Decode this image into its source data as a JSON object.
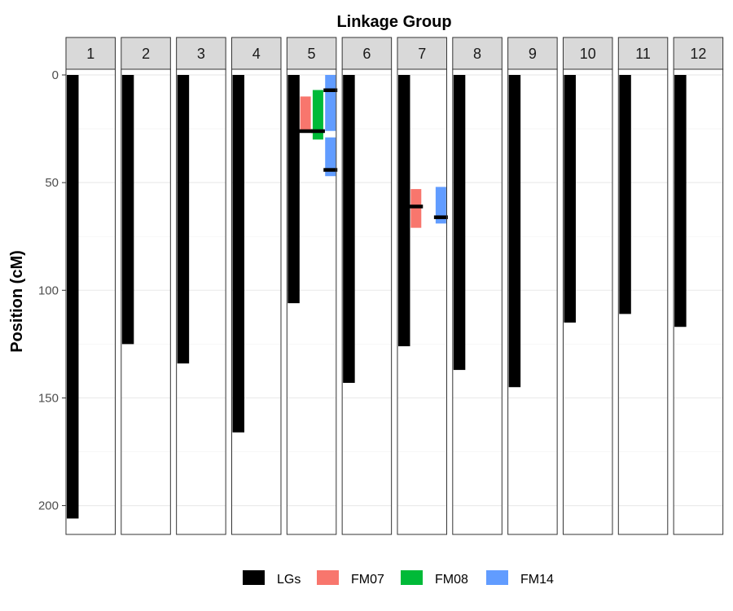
{
  "chart_data": {
    "type": "bar",
    "title": "Linkage Group",
    "xlabel": "",
    "ylabel": "Position (cM)",
    "ylim": [
      0,
      213
    ],
    "y_reversed": true,
    "y_ticks": [
      0,
      50,
      100,
      150,
      200
    ],
    "grid": true,
    "legend_position": "bottom",
    "facets": [
      "1",
      "2",
      "3",
      "4",
      "5",
      "6",
      "7",
      "8",
      "9",
      "10",
      "11",
      "12"
    ],
    "legend": [
      {
        "name": "LGs",
        "color": "#000000"
      },
      {
        "name": "FM07",
        "color": "#F8766D"
      },
      {
        "name": "FM08",
        "color": "#00BA38"
      },
      {
        "name": "FM14",
        "color": "#619CFF"
      }
    ],
    "linkage_groups": [
      {
        "lg": "1",
        "start": 0,
        "end": 206
      },
      {
        "lg": "2",
        "start": 0,
        "end": 125
      },
      {
        "lg": "3",
        "start": 0,
        "end": 134
      },
      {
        "lg": "4",
        "start": 0,
        "end": 166
      },
      {
        "lg": "5",
        "start": 0,
        "end": 106
      },
      {
        "lg": "6",
        "start": 0,
        "end": 143
      },
      {
        "lg": "7",
        "start": 0,
        "end": 126
      },
      {
        "lg": "8",
        "start": 0,
        "end": 137
      },
      {
        "lg": "9",
        "start": 0,
        "end": 145
      },
      {
        "lg": "10",
        "start": 0,
        "end": 115
      },
      {
        "lg": "11",
        "start": 0,
        "end": 111
      },
      {
        "lg": "12",
        "start": 0,
        "end": 117
      }
    ],
    "qtls": [
      {
        "lg": "5",
        "trait": "FM07",
        "start": 10,
        "end": 26,
        "peak": 26
      },
      {
        "lg": "5",
        "trait": "FM08",
        "start": 7,
        "end": 30,
        "peak": 26
      },
      {
        "lg": "5",
        "trait": "FM14",
        "start": 0,
        "end": 26,
        "peak": 7
      },
      {
        "lg": "5",
        "trait": "FM14",
        "start": 29,
        "end": 47,
        "peak": 44
      },
      {
        "lg": "7",
        "trait": "FM07",
        "start": 53,
        "end": 71,
        "peak": 61
      },
      {
        "lg": "7",
        "trait": "FM14",
        "start": 52,
        "end": 69,
        "peak": 66
      }
    ]
  }
}
